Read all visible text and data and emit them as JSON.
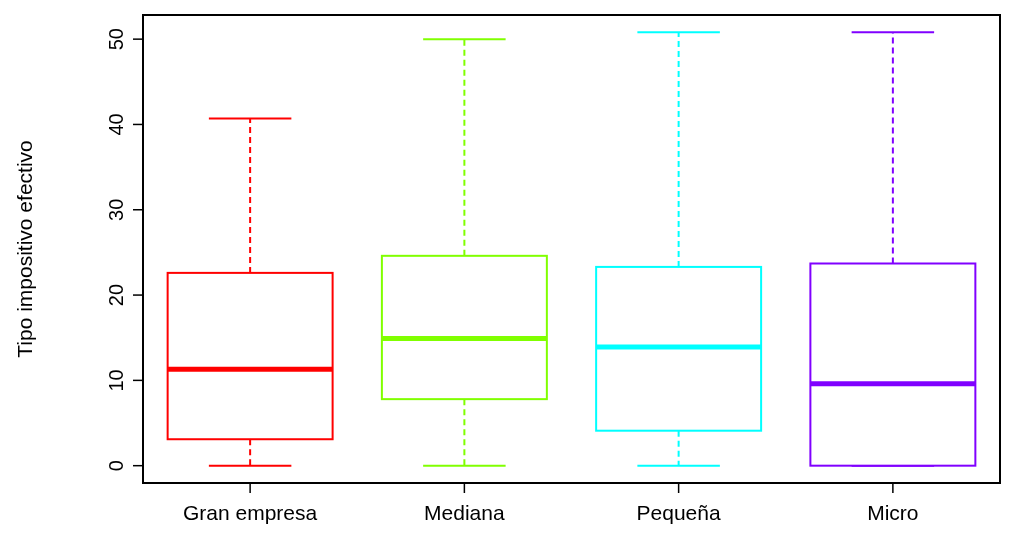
{
  "chart_data": {
    "type": "box",
    "ylabel": "Tipo impositivo efectivo",
    "categories": [
      "Gran empresa",
      "Mediana",
      "Pequeña",
      "Micro"
    ],
    "colors": [
      "#ff0000",
      "#80ff00",
      "#00ffff",
      "#8000ff"
    ],
    "boxes": [
      {
        "low": 0,
        "q1": 3.1,
        "median": 11.3,
        "q3": 22.6,
        "high": 40.7
      },
      {
        "low": 0,
        "q1": 7.8,
        "median": 14.9,
        "q3": 24.6,
        "high": 50
      },
      {
        "low": 0,
        "q1": 4.1,
        "median": 13.9,
        "q3": 23.3,
        "high": 50.8
      },
      {
        "low": 0,
        "q1": 0,
        "median": 9.6,
        "q3": 23.7,
        "high": 50.8
      }
    ],
    "ylim": [
      -2.03,
      52.83
    ],
    "yticks": [
      0,
      10,
      20,
      30,
      40,
      50
    ],
    "grid": false
  }
}
